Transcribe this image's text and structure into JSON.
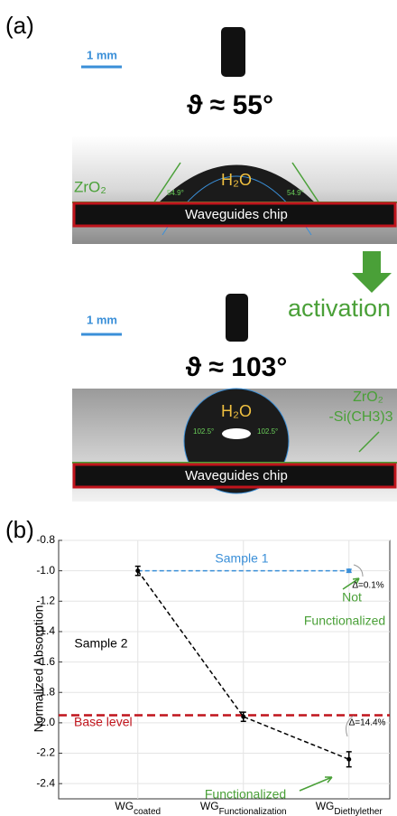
{
  "panel_a": {
    "label": "(a)",
    "top": {
      "scale": "1 mm",
      "angle": "ϑ ≈ 55°",
      "water": "H₂O",
      "coating": "ZrO₂",
      "chip": "Waveguides chip",
      "left_angle": "54.9°",
      "right_angle": "54.9°"
    },
    "step": "activation",
    "bottom": {
      "scale": "1 mm",
      "angle": "ϑ ≈ 103°",
      "water": "H₂O",
      "coating_line1": "ZrO₂",
      "coating_line2": "-Si(CH3)3",
      "chip": "Waveguides chip",
      "left_angle": "102.5°",
      "right_angle": "102.5°"
    }
  },
  "panel_b_label": "(b)",
  "chart_data": {
    "type": "line",
    "ylabel": "Normalized Absorption",
    "categories": [
      {
        "base": "WG",
        "sub": "coated"
      },
      {
        "base": "WG",
        "sub": "Functionalization"
      },
      {
        "base": "WG",
        "sub": "Diethylether"
      }
    ],
    "series": [
      {
        "name": "Sample 1",
        "color": "#3a8fd8",
        "values": [
          -1.0,
          -1.0,
          -1.0
        ],
        "errors": [
          null,
          null,
          0.01
        ]
      },
      {
        "name": "Sample 2",
        "color": "#000000",
        "values": [
          -1.0,
          -1.96,
          -2.24
        ],
        "errors": [
          0.03,
          0.03,
          0.05
        ]
      }
    ],
    "base_level": {
      "value": -1.95,
      "label": "Base level",
      "color": "#c0141c"
    },
    "ylim": [
      -2.5,
      -0.8
    ],
    "yticks": [
      -0.8,
      {
        "value": -1,
        "label": "-1.0"
      },
      -1.2,
      -1.4,
      -1.6,
      -1.8,
      {
        "value": -2,
        "label": "-2.0"
      },
      -2.2,
      -2.4
    ],
    "grid": true,
    "annotations": {
      "not_line1": "Not",
      "not_line2": "Functionalized",
      "delta1": "Δ=0.1%",
      "functionalized": "Functionalized",
      "delta2": "Δ=14.4%"
    }
  }
}
